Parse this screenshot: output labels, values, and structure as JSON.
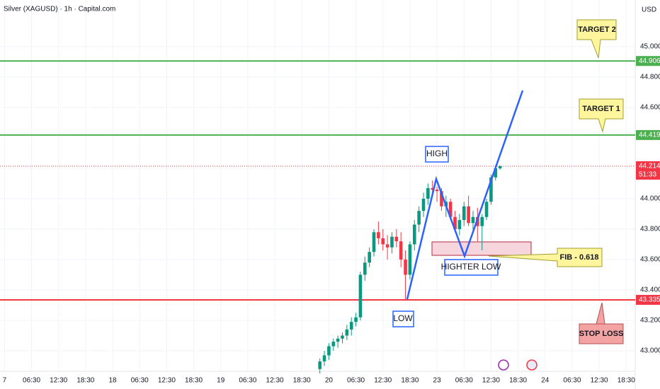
{
  "chart_data": {
    "type": "candlestick",
    "title": "Silver (XAGUSD) · 1h · Capital.com",
    "currency": "USD",
    "up_color": "#089981",
    "down_color": "#f23645",
    "xlim": [
      -1,
      140
    ],
    "ylim": [
      42.865,
      45.307
    ],
    "xticks": [
      {
        "value": 0,
        "label": "7"
      },
      {
        "value": 6,
        "label": "06:30"
      },
      {
        "value": 12,
        "label": "12:30"
      },
      {
        "value": 18,
        "label": "18:30"
      },
      {
        "value": 24,
        "label": "18"
      },
      {
        "value": 30,
        "label": "06:30"
      },
      {
        "value": 36,
        "label": "12:30"
      },
      {
        "value": 42,
        "label": "18:30"
      },
      {
        "value": 48,
        "label": "19"
      },
      {
        "value": 54,
        "label": "06:30"
      },
      {
        "value": 60,
        "label": "12:30"
      },
      {
        "value": 66,
        "label": "18:30"
      },
      {
        "value": 72,
        "label": "20"
      },
      {
        "value": 78,
        "label": "06:30"
      },
      {
        "value": 84,
        "label": "12:30"
      },
      {
        "value": 90,
        "label": "18:30"
      },
      {
        "value": 96,
        "label": "23"
      },
      {
        "value": 102,
        "label": "06:30"
      },
      {
        "value": 108,
        "label": "12:30"
      },
      {
        "value": 114,
        "label": "18:30"
      },
      {
        "value": 120,
        "label": "24"
      },
      {
        "value": 126,
        "label": "06:30"
      },
      {
        "value": 132,
        "label": "12:30"
      },
      {
        "value": 138,
        "label": "18:30"
      }
    ],
    "yticks": [
      {
        "value": 43,
        "label": "43.000"
      },
      {
        "value": 43.2,
        "label": "43.200"
      },
      {
        "value": 43.4,
        "label": "43.400"
      },
      {
        "value": 43.6,
        "label": "43.600"
      },
      {
        "value": 43.8,
        "label": "43.800"
      },
      {
        "value": 44,
        "label": "44.000"
      },
      {
        "value": 44.6,
        "label": "44.600"
      },
      {
        "value": 44.8,
        "label": "44.800"
      },
      {
        "value": 45,
        "label": "45.000"
      }
    ],
    "grid": true,
    "x": [
      70,
      71,
      72,
      73,
      74,
      75,
      76,
      77,
      78,
      79,
      80,
      81,
      82,
      83,
      84,
      85,
      86,
      87,
      88,
      89,
      90,
      91,
      92,
      93,
      94,
      95,
      96,
      97,
      98,
      99,
      100,
      101,
      102,
      103,
      104,
      105,
      106,
      107,
      108,
      109,
      110
    ],
    "open": [
      42.88,
      42.93,
      42.97,
      43.03,
      43.06,
      43.08,
      43.1,
      43.14,
      43.19,
      43.22,
      43.5,
      43.58,
      43.65,
      43.78,
      43.74,
      43.7,
      43.68,
      43.75,
      43.72,
      43.6,
      43.5,
      43.7,
      43.83,
      43.92,
      44.0,
      44.07,
      44.06,
      44.05,
      43.95,
      43.98,
      43.88,
      43.8,
      43.86,
      43.95,
      43.84,
      43.88,
      43.82,
      43.88,
      43.98,
      44.14,
      44.2
    ],
    "high": [
      42.95,
      43.0,
      43.05,
      43.08,
      43.1,
      43.12,
      43.17,
      43.22,
      43.25,
      43.52,
      43.62,
      43.68,
      43.8,
      43.85,
      43.8,
      43.76,
      43.78,
      43.8,
      43.78,
      43.66,
      43.72,
      43.86,
      43.95,
      44.04,
      44.1,
      44.12,
      44.08,
      44.07,
      44.02,
      44.0,
      43.92,
      43.9,
      43.98,
      44.02,
      43.92,
      43.94,
      43.9,
      44.0,
      44.16,
      44.22,
      44.22
    ],
    "low": [
      42.85,
      42.9,
      42.94,
      43.0,
      43.02,
      43.05,
      43.07,
      43.1,
      43.16,
      43.2,
      43.46,
      43.55,
      43.62,
      43.7,
      43.66,
      43.6,
      43.64,
      43.68,
      43.55,
      43.34,
      43.47,
      43.66,
      43.78,
      43.88,
      43.96,
      44.03,
      43.98,
      43.92,
      43.88,
      43.86,
      43.78,
      43.76,
      43.82,
      43.82,
      43.78,
      43.72,
      43.66,
      43.86,
      43.96,
      44.12,
      44.19
    ],
    "close": [
      42.93,
      42.97,
      43.03,
      43.06,
      43.08,
      43.1,
      43.14,
      43.19,
      43.22,
      43.5,
      43.58,
      43.65,
      43.78,
      43.74,
      43.7,
      43.68,
      43.75,
      43.72,
      43.6,
      43.5,
      43.7,
      43.83,
      43.92,
      44.0,
      44.07,
      44.06,
      44.05,
      43.95,
      43.98,
      43.88,
      43.8,
      43.86,
      43.95,
      43.84,
      43.88,
      43.82,
      43.88,
      43.98,
      44.14,
      44.2,
      44.214
    ],
    "levels": [
      {
        "value": 44.906,
        "color": "#4caf50"
      },
      {
        "value": 44.419,
        "color": "#4caf50"
      },
      {
        "value": 43.335,
        "color": "#f23645"
      },
      {
        "value": 44.214,
        "color": "#f23645",
        "dotted": true
      }
    ],
    "countdown": "51:33",
    "annotations": {
      "target_2": "TARGET 2",
      "target_1": "TARGET 1",
      "fib": "FIB - 0.618",
      "stop_loss": "STOP LOSS",
      "high": "HIGH",
      "higher_low": "HIGHTER LOW",
      "low": "LOW"
    }
  }
}
